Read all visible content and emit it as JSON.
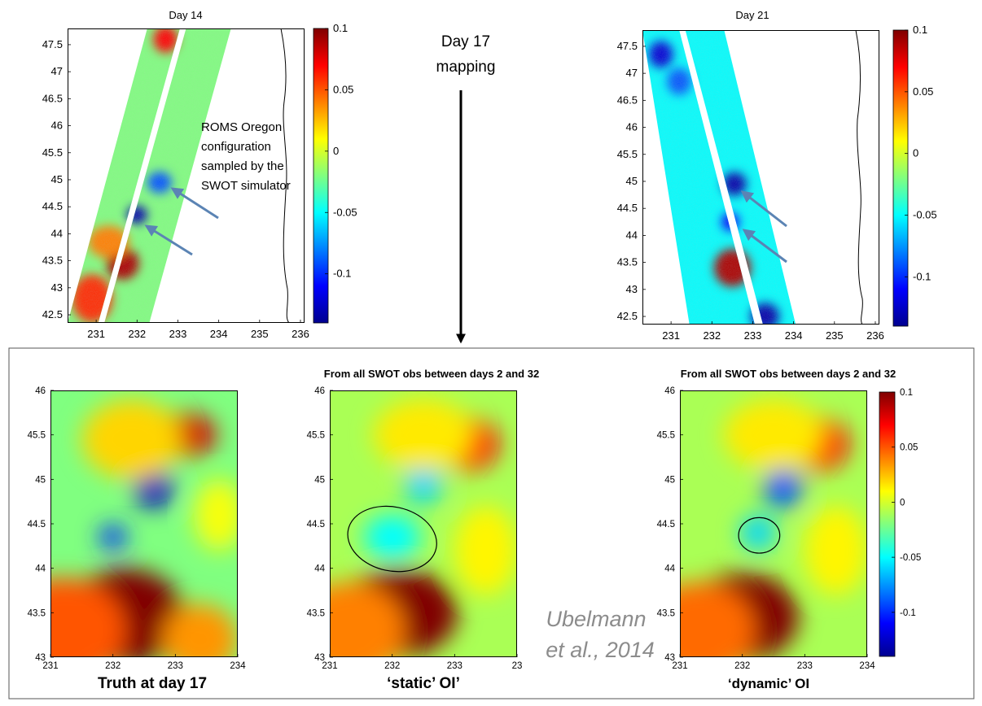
{
  "figure": {
    "annotation_roms": [
      "ROMS Oregon",
      "configuration",
      "sampled by the",
      "SWOT simulator"
    ],
    "day17_label": [
      "Day 17",
      "mapping"
    ],
    "credit": [
      "Ubelmann",
      "et al., 2014"
    ]
  },
  "colormap": "jet",
  "colors": {
    "panel_border": "#555555",
    "arrow": "#5b84b4",
    "credit": "#8c8c8c",
    "coast": "#000000"
  },
  "chart_data": [
    {
      "type": "heatmap",
      "title": "Day 14",
      "x_ticks": [
        "231",
        "232",
        "233",
        "234",
        "235",
        "236"
      ],
      "y_ticks": [
        "42.5",
        "43",
        "43.5",
        "44",
        "44.5",
        "45",
        "45.5",
        "46",
        "46.5",
        "47",
        "47.5"
      ],
      "xlim": [
        230.3,
        236.1
      ],
      "ylim": [
        42.35,
        47.8
      ],
      "colorbar": {
        "ticks": [
          "0.1",
          "0.05",
          "0",
          "-0.05",
          "-0.1"
        ],
        "range": [
          -0.14,
          0.1
        ]
      },
      "swaths": [
        {
          "bottom_left_lon": 230.3,
          "bottom_right_lon": 231.05,
          "top_left_lon": 232.25,
          "top_right_lon": 233.05,
          "lat_range": [
            42.35,
            47.8
          ]
        },
        {
          "bottom_left_lon": 231.2,
          "bottom_right_lon": 232.3,
          "top_left_lon": 233.2,
          "top_right_lon": 234.3,
          "lat_range": [
            42.35,
            47.8
          ]
        }
      ],
      "features": [
        {
          "lon": 232.0,
          "lat": 44.35,
          "rx": 0.25,
          "ry": 0.17,
          "value": -0.13
        },
        {
          "lon": 232.55,
          "lat": 44.95,
          "rx": 0.3,
          "ry": 0.2,
          "value": -0.09
        },
        {
          "lon": 231.65,
          "lat": 43.45,
          "rx": 0.4,
          "ry": 0.3,
          "value": 0.09
        },
        {
          "lon": 230.9,
          "lat": 42.8,
          "rx": 0.5,
          "ry": 0.45,
          "value": 0.06
        },
        {
          "lon": 232.7,
          "lat": 47.6,
          "rx": 0.3,
          "ry": 0.25,
          "value": 0.07
        },
        {
          "lon": 231.3,
          "lat": 43.85,
          "rx": 0.5,
          "ry": 0.3,
          "value": 0.04
        }
      ],
      "background_value": -0.02
    },
    {
      "type": "heatmap",
      "title": "Day 21",
      "x_ticks": [
        "231",
        "232",
        "233",
        "234",
        "235",
        "236"
      ],
      "y_ticks": [
        "42.5",
        "43",
        "43.5",
        "44",
        "44.5",
        "45",
        "45.5",
        "46",
        "46.5",
        "47",
        "47.5"
      ],
      "xlim": [
        230.3,
        236.1
      ],
      "ylim": [
        42.35,
        47.8
      ],
      "colorbar": {
        "ticks": [
          "0.1",
          "0.05",
          "0",
          "-0.05",
          "-0.1"
        ],
        "range": [
          -0.14,
          0.1
        ]
      },
      "swaths": [
        {
          "bottom_left_lon": 231.45,
          "bottom_right_lon": 233.05,
          "top_left_lon": 230.3,
          "top_right_lon": 231.2,
          "lat_range": [
            42.35,
            47.8
          ]
        },
        {
          "bottom_left_lon": 233.25,
          "bottom_right_lon": 234.05,
          "top_left_lon": 231.35,
          "top_right_lon": 232.3,
          "lat_range": [
            42.35,
            47.8
          ]
        }
      ],
      "features": [
        {
          "lon": 232.55,
          "lat": 44.95,
          "rx": 0.3,
          "ry": 0.22,
          "value": -0.13
        },
        {
          "lon": 232.45,
          "lat": 44.25,
          "rx": 0.22,
          "ry": 0.17,
          "value": -0.11
        },
        {
          "lon": 232.5,
          "lat": 43.4,
          "rx": 0.45,
          "ry": 0.35,
          "value": 0.09
        },
        {
          "lon": 230.75,
          "lat": 47.35,
          "rx": 0.3,
          "ry": 0.25,
          "value": -0.12
        },
        {
          "lon": 231.2,
          "lat": 46.85,
          "rx": 0.3,
          "ry": 0.25,
          "value": -0.09
        },
        {
          "lon": 233.3,
          "lat": 42.5,
          "rx": 0.35,
          "ry": 0.25,
          "value": -0.13
        }
      ],
      "background_value": -0.05
    },
    {
      "type": "heatmap",
      "title": "",
      "caption": "Truth at day 17",
      "x_ticks": [
        "231",
        "232",
        "233",
        "234"
      ],
      "y_ticks": [
        "43",
        "43.5",
        "44",
        "44.5",
        "45",
        "45.5",
        "46"
      ],
      "xlim": [
        231,
        234
      ],
      "ylim": [
        43,
        46
      ],
      "background_value": -0.02,
      "features": [
        {
          "lon": 232.2,
          "lat": 43.45,
          "rx": 0.95,
          "ry": 0.55,
          "value": 0.11
        },
        {
          "lon": 231.2,
          "lat": 43.3,
          "rx": 1.0,
          "ry": 0.6,
          "value": 0.05
        },
        {
          "lon": 233.4,
          "lat": 43.2,
          "rx": 0.6,
          "ry": 0.4,
          "value": 0.035
        },
        {
          "lon": 232.65,
          "lat": 44.9,
          "rx": 0.32,
          "ry": 0.22,
          "value": -0.125
        },
        {
          "lon": 232.0,
          "lat": 44.35,
          "rx": 0.22,
          "ry": 0.14,
          "value": -0.1
        },
        {
          "lon": 233.15,
          "lat": 45.5,
          "rx": 0.5,
          "ry": 0.25,
          "value": 0.08
        },
        {
          "lon": 232.3,
          "lat": 45.45,
          "rx": 0.8,
          "ry": 0.45,
          "value": 0.02
        },
        {
          "lon": 233.7,
          "lat": 44.6,
          "rx": 0.4,
          "ry": 0.4,
          "value": 0.008
        }
      ]
    },
    {
      "type": "heatmap",
      "title": "From all SWOT obs between days 2 and 32",
      "caption": "‘static’ OI’",
      "x_ticks": [
        "231",
        "232",
        "233",
        "23"
      ],
      "y_ticks": [
        "43",
        "43.5",
        "44",
        "44.5",
        "45",
        "45.5",
        "46"
      ],
      "xlim": [
        231,
        234
      ],
      "ylim": [
        43,
        46
      ],
      "background_value": -0.01,
      "features": [
        {
          "lon": 232.1,
          "lat": 43.5,
          "rx": 0.95,
          "ry": 0.5,
          "value": 0.1
        },
        {
          "lon": 231.3,
          "lat": 43.3,
          "rx": 0.9,
          "ry": 0.55,
          "value": 0.04
        },
        {
          "lon": 233.2,
          "lat": 45.4,
          "rx": 0.5,
          "ry": 0.3,
          "value": 0.07
        },
        {
          "lon": 232.5,
          "lat": 44.95,
          "rx": 0.3,
          "ry": 0.22,
          "value": -0.06
        },
        {
          "lon": 232.0,
          "lat": 44.35,
          "rx": 0.45,
          "ry": 0.25,
          "value": -0.05
        },
        {
          "lon": 232.5,
          "lat": 45.5,
          "rx": 0.8,
          "ry": 0.4,
          "value": 0.015
        },
        {
          "lon": 233.5,
          "lat": 44.2,
          "rx": 0.5,
          "ry": 0.5,
          "value": 0.012
        }
      ],
      "ellipse": {
        "lon": 232.0,
        "lat": 44.33,
        "rx_lon": 0.72,
        "ry_lat": 0.36,
        "rotation_deg": 12
      }
    },
    {
      "type": "heatmap",
      "title": "From all SWOT obs between days 2 and 32",
      "caption": "‘dynamic’ OI",
      "x_ticks": [
        "231",
        "232",
        "233",
        "234"
      ],
      "y_ticks": [
        "43",
        "43.5",
        "44",
        "44.5",
        "45",
        "45.5",
        "46"
      ],
      "xlim": [
        231,
        234
      ],
      "ylim": [
        43,
        46
      ],
      "colorbar": {
        "ticks": [
          "0.1",
          "0.05",
          "0",
          "-0.05",
          "-0.1"
        ],
        "range": [
          -0.14,
          0.1
        ]
      },
      "background_value": -0.01,
      "features": [
        {
          "lon": 232.0,
          "lat": 43.45,
          "rx": 0.9,
          "ry": 0.5,
          "value": 0.1
        },
        {
          "lon": 231.3,
          "lat": 43.3,
          "rx": 0.9,
          "ry": 0.55,
          "value": 0.045
        },
        {
          "lon": 233.2,
          "lat": 45.4,
          "rx": 0.5,
          "ry": 0.3,
          "value": 0.07
        },
        {
          "lon": 232.65,
          "lat": 44.9,
          "rx": 0.3,
          "ry": 0.22,
          "value": -0.09
        },
        {
          "lon": 232.25,
          "lat": 44.4,
          "rx": 0.28,
          "ry": 0.2,
          "value": -0.06
        },
        {
          "lon": 232.5,
          "lat": 45.5,
          "rx": 0.8,
          "ry": 0.4,
          "value": 0.015
        },
        {
          "lon": 233.5,
          "lat": 44.2,
          "rx": 0.5,
          "ry": 0.5,
          "value": 0.012
        }
      ],
      "ellipse": {
        "lon": 232.27,
        "lat": 44.37,
        "rx_lon": 0.33,
        "ry_lat": 0.2,
        "rotation_deg": 0
      }
    }
  ]
}
